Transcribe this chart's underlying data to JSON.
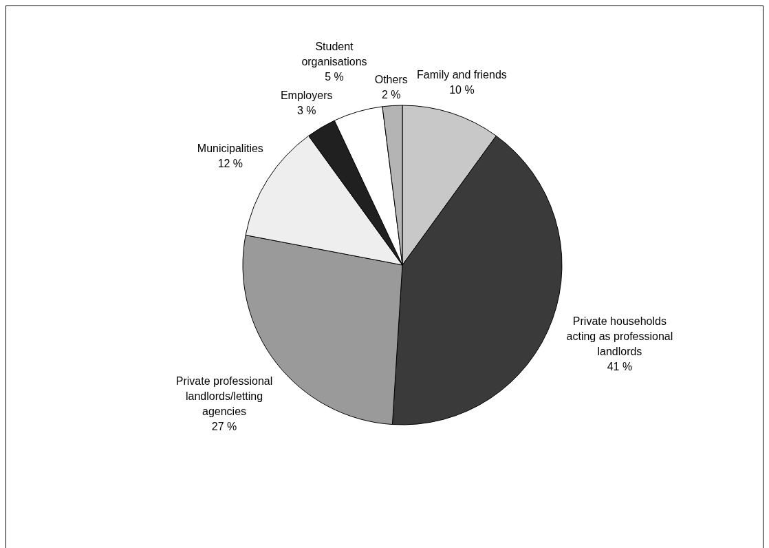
{
  "chart_data": {
    "type": "pie",
    "categories": [
      "Family and friends",
      "Private households acting as professional landlords",
      "Private professional landlords/letting agencies",
      "Municipalities",
      "Employers",
      "Student organisations",
      "Others"
    ],
    "values": [
      10,
      41,
      27,
      12,
      3,
      5,
      2
    ],
    "value_labels": [
      "10 %",
      "41 %",
      "27 %",
      "12 %",
      "3 %",
      "5 %",
      "2 %"
    ],
    "colors": [
      "#c8c8c8",
      "#3a3a3a",
      "#9a9a9a",
      "#eeeeee",
      "#202020",
      "#ffffff",
      "#b4b4b4"
    ]
  }
}
